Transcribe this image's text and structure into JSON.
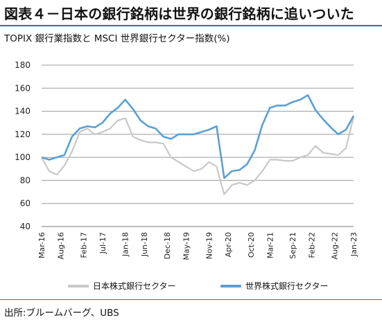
{
  "title": "図表４－日本の銀行銘柄は世界の銀行銘柄に追いついた",
  "subtitle": "TOPIX 銀行業指数と MSCI 世界銀行セクター指数(%)",
  "source": "出所:ブルームバーグ、UBS",
  "chart_data": {
    "type": "line",
    "ylim": [
      40,
      180
    ],
    "yticks": [
      40,
      60,
      80,
      100,
      120,
      140,
      160,
      180
    ],
    "grid": "horizontal",
    "legend_position": "bottom",
    "xlim": [
      "2016-03",
      "2023-01"
    ],
    "xtick_labels": [
      "Mar-16",
      "Aug-16",
      "Feb-17",
      "Jul-17",
      "Jan-18",
      "Jun-18",
      "Dec-18",
      "May-19",
      "Nov-19",
      "Apr-20",
      "Oct-20",
      "Mar-21",
      "Sep-21",
      "Feb-22",
      "Aug-22",
      "Jan-23"
    ],
    "x": [
      "2016-03",
      "2016-05",
      "2016-07",
      "2016-09",
      "2016-11",
      "2017-01",
      "2017-03",
      "2017-05",
      "2017-07",
      "2017-09",
      "2017-11",
      "2018-01",
      "2018-03",
      "2018-05",
      "2018-07",
      "2018-09",
      "2018-11",
      "2019-01",
      "2019-03",
      "2019-05",
      "2019-07",
      "2019-09",
      "2019-11",
      "2020-01",
      "2020-03",
      "2020-05",
      "2020-07",
      "2020-09",
      "2020-11",
      "2021-01",
      "2021-03",
      "2021-05",
      "2021-07",
      "2021-09",
      "2021-11",
      "2022-01",
      "2022-03",
      "2022-05",
      "2022-07",
      "2022-09",
      "2022-11",
      "2023-01"
    ],
    "series": [
      {
        "name": "日本株式銀行セクター",
        "color": "#c8c8c8",
        "values": [
          100,
          88,
          85,
          93,
          105,
          122,
          125,
          120,
          122,
          125,
          132,
          134,
          118,
          115,
          113,
          113,
          112,
          100,
          96,
          92,
          88,
          90,
          96,
          92,
          68,
          76,
          78,
          76,
          80,
          88,
          98,
          98,
          97,
          97,
          100,
          102,
          110,
          104,
          103,
          102,
          108,
          135
        ]
      },
      {
        "name": "世界株式銀行セクター",
        "color": "#5a9fd4",
        "values": [
          100,
          98,
          100,
          102,
          118,
          125,
          127,
          126,
          130,
          138,
          143,
          150,
          142,
          132,
          127,
          125,
          118,
          116,
          120,
          120,
          120,
          122,
          124,
          127,
          82,
          88,
          89,
          94,
          106,
          128,
          143,
          145,
          145,
          148,
          150,
          154,
          141,
          133,
          126,
          120,
          124,
          136
        ]
      }
    ]
  }
}
